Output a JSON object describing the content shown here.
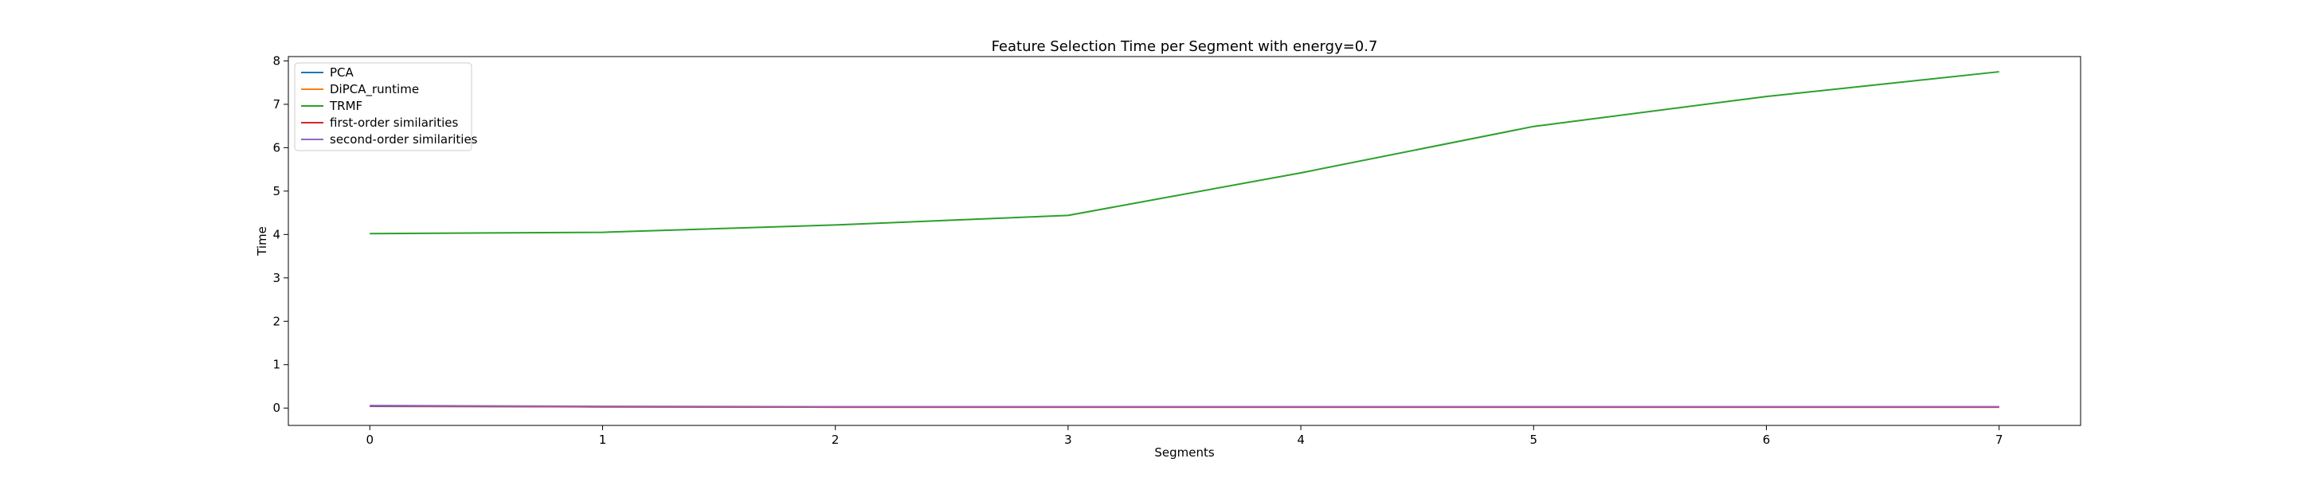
{
  "chart_data": {
    "type": "line",
    "title": "Feature Selection Time per Segment with energy=0.7",
    "xlabel": "Segments",
    "ylabel": "Time",
    "x": [
      0,
      1,
      2,
      3,
      4,
      5,
      6,
      7
    ],
    "xlim": [
      -0.35,
      7.35
    ],
    "ylim": [
      -0.4,
      8.1
    ],
    "xticks": [
      "0",
      "1",
      "2",
      "3",
      "4",
      "5",
      "6",
      "7"
    ],
    "yticks": [
      "0",
      "1",
      "2",
      "3",
      "4",
      "5",
      "6",
      "7",
      "8"
    ],
    "grid": false,
    "legend_position": "upper-left",
    "series": [
      {
        "name": "PCA",
        "color": "#1f77b4",
        "values": [
          0.04,
          0.03,
          0.03,
          0.03,
          0.03,
          0.03,
          0.03,
          0.03
        ]
      },
      {
        "name": "DiPCA_runtime",
        "color": "#ff7f0e",
        "values": [
          0.05,
          0.03,
          0.03,
          0.03,
          0.03,
          0.03,
          0.03,
          0.03
        ]
      },
      {
        "name": "TRMF",
        "color": "#2ca02c",
        "values": [
          4.02,
          4.05,
          4.22,
          4.44,
          5.42,
          6.49,
          7.18,
          7.75
        ]
      },
      {
        "name": "first-order similarities",
        "color": "#d62728",
        "values": [
          0.05,
          0.03,
          0.02,
          0.02,
          0.02,
          0.02,
          0.02,
          0.02
        ]
      },
      {
        "name": "second-order similarities",
        "color": "#9467bd",
        "values": [
          0.06,
          0.04,
          0.03,
          0.03,
          0.03,
          0.03,
          0.03,
          0.03
        ]
      }
    ]
  }
}
